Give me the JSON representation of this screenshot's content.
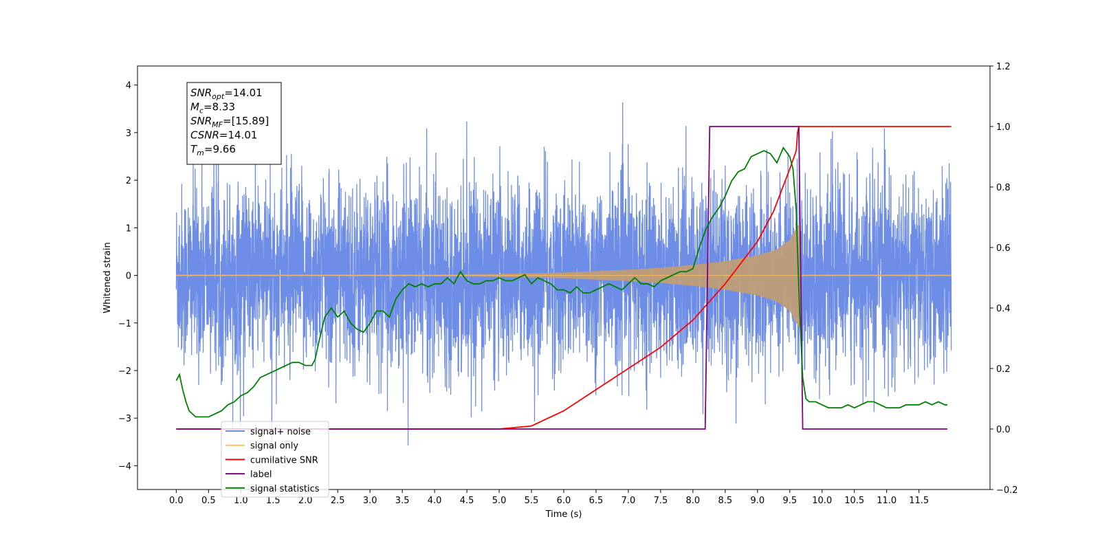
{
  "chart_data": {
    "type": "line",
    "xlabel": "Time (s)",
    "ylabel": "Whitened strain",
    "xlim": [
      -0.6,
      12.6
    ],
    "ylim": [
      -4.5,
      4.4
    ],
    "y2lim": [
      -0.2,
      1.2
    ],
    "x_ticks": [
      0.0,
      0.5,
      1.0,
      1.5,
      2.0,
      2.5,
      3.0,
      3.5,
      4.0,
      4.5,
      5.0,
      5.5,
      6.0,
      6.5,
      7.0,
      7.5,
      8.0,
      8.5,
      9.0,
      9.5,
      10.0,
      10.5,
      11.0,
      11.5
    ],
    "x_tick_labels": [
      "0.0",
      "0.5",
      "1.0",
      "1.5",
      "2.0",
      "2.5",
      "3.0",
      "3.5",
      "4.0",
      "4.5",
      "5.0",
      "5.5",
      "6.0",
      "6.5",
      "7.0",
      "7.5",
      "8.0",
      "8.5",
      "9.0",
      "9.5",
      "10.0",
      "10.5",
      "11.0",
      "11.5"
    ],
    "y_ticks": [
      4,
      3,
      2,
      1,
      0,
      -1,
      -2,
      -3,
      -4
    ],
    "y_tick_labels": [
      "4",
      "3",
      "2",
      "1",
      "0",
      "−1",
      "−2",
      "−3",
      "−4"
    ],
    "y2_ticks": [
      1.2,
      1.0,
      0.8,
      0.6,
      0.4,
      0.2,
      0.0,
      -0.2
    ],
    "y2_tick_labels": [
      "1.2",
      "1.0",
      "0.8",
      "0.6",
      "0.4",
      "0.2",
      "0.0",
      "−0.2"
    ],
    "series": [
      {
        "name": "signal+ noise",
        "axis": "left",
        "color": "#6e8de6",
        "x_range": [
          0.0,
          12.0
        ],
        "noise_sigma": 1.0,
        "y_range_observed": [
          -4.0,
          3.95
        ],
        "note_visible": "dense noisy trace spanning the full time range"
      },
      {
        "name": "signal only",
        "axis": "left",
        "color": "#ffbf60",
        "x": [
          0.0,
          4.0,
          5.0,
          6.0,
          7.0,
          7.5,
          8.0,
          8.5,
          9.0,
          9.3,
          9.5,
          9.6,
          9.66,
          9.68,
          12.0
        ],
        "amplitude_envelope": [
          0.02,
          0.02,
          0.03,
          0.06,
          0.12,
          0.16,
          0.22,
          0.3,
          0.42,
          0.55,
          0.75,
          1.0,
          1.1,
          0.02,
          0.02
        ]
      },
      {
        "name": "cumilative SNR",
        "axis": "right",
        "color": "#ff0000",
        "x": [
          0.0,
          4.0,
          5.0,
          5.5,
          6.0,
          6.5,
          7.0,
          7.5,
          8.0,
          8.5,
          9.0,
          9.25,
          9.5,
          9.6,
          9.62,
          9.64,
          9.65,
          12.0
        ],
        "values": [
          0.0,
          0.0,
          0.0,
          0.01,
          0.06,
          0.13,
          0.2,
          0.27,
          0.36,
          0.48,
          0.62,
          0.72,
          0.86,
          0.92,
          0.98,
          1.0,
          1.0,
          1.0
        ]
      },
      {
        "name": "label",
        "axis": "right",
        "color": "#800080",
        "x": [
          0.0,
          8.19,
          8.26,
          9.64,
          9.7,
          11.94
        ],
        "values": [
          0.0,
          0.0,
          1.0,
          1.0,
          0.0,
          0.0
        ]
      },
      {
        "name": "signal statistics",
        "axis": "right",
        "color": "#008000",
        "x": [
          0.0,
          0.05,
          0.1,
          0.15,
          0.2,
          0.3,
          0.4,
          0.5,
          0.6,
          0.7,
          0.8,
          0.9,
          1.0,
          1.1,
          1.2,
          1.3,
          1.4,
          1.5,
          1.6,
          1.7,
          1.8,
          1.9,
          2.0,
          2.1,
          2.15,
          2.2,
          2.3,
          2.4,
          2.5,
          2.6,
          2.7,
          2.8,
          2.9,
          3.0,
          3.1,
          3.2,
          3.3,
          3.4,
          3.5,
          3.6,
          3.7,
          3.8,
          3.9,
          4.0,
          4.1,
          4.2,
          4.3,
          4.4,
          4.5,
          4.6,
          4.7,
          4.8,
          4.9,
          5.0,
          5.1,
          5.2,
          5.3,
          5.4,
          5.5,
          5.6,
          5.7,
          5.8,
          5.9,
          6.0,
          6.1,
          6.2,
          6.3,
          6.4,
          6.5,
          6.6,
          6.7,
          6.8,
          6.9,
          7.0,
          7.1,
          7.2,
          7.3,
          7.4,
          7.5,
          7.6,
          7.7,
          7.8,
          7.9,
          8.0,
          8.1,
          8.2,
          8.3,
          8.4,
          8.5,
          8.6,
          8.7,
          8.8,
          8.9,
          9.0,
          9.1,
          9.2,
          9.3,
          9.4,
          9.5,
          9.55,
          9.6,
          9.65,
          9.7,
          9.75,
          9.8,
          9.9,
          10.0,
          10.1,
          10.2,
          10.3,
          10.4,
          10.5,
          10.6,
          10.7,
          10.8,
          10.9,
          11.0,
          11.1,
          11.2,
          11.3,
          11.4,
          11.5,
          11.6,
          11.7,
          11.8,
          11.9,
          11.94
        ],
        "values": [
          0.16,
          0.18,
          0.13,
          0.09,
          0.06,
          0.04,
          0.04,
          0.04,
          0.05,
          0.06,
          0.08,
          0.09,
          0.11,
          0.12,
          0.14,
          0.17,
          0.18,
          0.19,
          0.2,
          0.21,
          0.22,
          0.22,
          0.21,
          0.21,
          0.23,
          0.28,
          0.37,
          0.4,
          0.37,
          0.39,
          0.35,
          0.33,
          0.32,
          0.35,
          0.39,
          0.39,
          0.37,
          0.43,
          0.46,
          0.48,
          0.47,
          0.48,
          0.47,
          0.48,
          0.48,
          0.5,
          0.48,
          0.52,
          0.49,
          0.48,
          0.48,
          0.49,
          0.49,
          0.5,
          0.49,
          0.49,
          0.5,
          0.51,
          0.48,
          0.5,
          0.49,
          0.48,
          0.46,
          0.46,
          0.45,
          0.47,
          0.45,
          0.45,
          0.46,
          0.47,
          0.48,
          0.47,
          0.46,
          0.48,
          0.5,
          0.48,
          0.48,
          0.47,
          0.49,
          0.5,
          0.51,
          0.52,
          0.52,
          0.53,
          0.6,
          0.66,
          0.7,
          0.73,
          0.77,
          0.82,
          0.85,
          0.86,
          0.9,
          0.91,
          0.92,
          0.91,
          0.88,
          0.93,
          0.9,
          0.86,
          0.72,
          0.4,
          0.17,
          0.1,
          0.09,
          0.09,
          0.08,
          0.07,
          0.07,
          0.07,
          0.08,
          0.07,
          0.08,
          0.09,
          0.09,
          0.08,
          0.07,
          0.07,
          0.07,
          0.08,
          0.08,
          0.08,
          0.09,
          0.08,
          0.09,
          0.08,
          0.08
        ]
      }
    ],
    "legend": {
      "placement": "lower-left",
      "entries": [
        {
          "label": "signal+ noise",
          "color": "#6e8de6"
        },
        {
          "label": "signal only",
          "color": "#ffbf60"
        },
        {
          "label": "cumilative SNR",
          "color": "#ff0000"
        },
        {
          "label": "label",
          "color": "#800080"
        },
        {
          "label": "signal statistics",
          "color": "#008000"
        }
      ]
    },
    "annotation": {
      "placement": "top-left",
      "lines": [
        {
          "base": "SNR",
          "sub": "opt",
          "rest": "=14.01"
        },
        {
          "base": "M",
          "sub": "c",
          "rest": "=8.33"
        },
        {
          "base": "SNR",
          "sub": "MF",
          "rest": "=[15.89]"
        },
        {
          "base": "CSNR",
          "sub": "",
          "rest": "=14.01"
        },
        {
          "base": "T",
          "sub": "m",
          "rest": "=9.66"
        }
      ]
    },
    "grid": false
  }
}
